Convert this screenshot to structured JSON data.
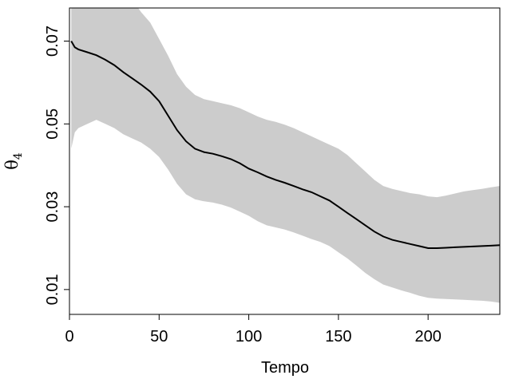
{
  "chart_data": {
    "type": "line",
    "title": "",
    "xlabel": "Tempo",
    "ylabel": "θ",
    "ylabel_subscript": "4",
    "xlim": [
      0,
      240
    ],
    "ylim": [
      0.004,
      0.078
    ],
    "xticks": [
      0,
      50,
      100,
      150,
      200
    ],
    "xtick_labels": [
      "0",
      "50",
      "100",
      "150",
      "200"
    ],
    "yticks": [
      0.01,
      0.03,
      0.05,
      0.07
    ],
    "ytick_labels": [
      "0.01",
      "0.03",
      "0.05",
      "0.07"
    ],
    "grid": false,
    "colors": {
      "line": "#000000",
      "band": "#cccccc",
      "frame": "#000000"
    },
    "series": [
      {
        "kind": "line",
        "x": [
          1,
          3,
          5,
          10,
          15,
          20,
          25,
          30,
          35,
          40,
          45,
          50,
          55,
          60,
          65,
          70,
          75,
          80,
          85,
          90,
          95,
          100,
          105,
          110,
          115,
          120,
          125,
          130,
          135,
          140,
          145,
          150,
          155,
          160,
          165,
          170,
          175,
          180,
          185,
          190,
          195,
          200,
          205,
          210,
          215,
          220,
          225,
          230,
          235,
          240
        ],
        "y": [
          0.07,
          0.0685,
          0.068,
          0.0673,
          0.0666,
          0.0655,
          0.0642,
          0.0625,
          0.061,
          0.0595,
          0.0578,
          0.0555,
          0.052,
          0.0485,
          0.0458,
          0.044,
          0.0432,
          0.0428,
          0.0422,
          0.0415,
          0.0405,
          0.0392,
          0.0383,
          0.0373,
          0.0365,
          0.0358,
          0.035,
          0.0342,
          0.0335,
          0.0325,
          0.0315,
          0.03,
          0.0285,
          0.027,
          0.0255,
          0.024,
          0.0228,
          0.022,
          0.0215,
          0.021,
          0.0205,
          0.02,
          0.02,
          0.0201,
          0.0202,
          0.0203,
          0.0204,
          0.0205,
          0.0206,
          0.0207
        ]
      },
      {
        "kind": "band",
        "x": [
          1,
          3,
          5,
          10,
          15,
          20,
          25,
          30,
          35,
          40,
          45,
          50,
          55,
          60,
          65,
          70,
          75,
          80,
          85,
          90,
          95,
          100,
          105,
          110,
          115,
          120,
          125,
          130,
          135,
          140,
          145,
          150,
          155,
          160,
          165,
          170,
          175,
          180,
          185,
          190,
          195,
          200,
          205,
          210,
          215,
          220,
          225,
          230,
          235,
          240
        ],
        "lower": [
          0.044,
          0.048,
          0.049,
          0.05,
          0.051,
          0.05,
          0.049,
          0.0475,
          0.0465,
          0.0455,
          0.044,
          0.042,
          0.039,
          0.0355,
          0.033,
          0.0318,
          0.0313,
          0.031,
          0.0305,
          0.0298,
          0.0288,
          0.0278,
          0.0265,
          0.0255,
          0.025,
          0.0245,
          0.0238,
          0.023,
          0.0222,
          0.0215,
          0.0205,
          0.019,
          0.0175,
          0.0158,
          0.014,
          0.0125,
          0.0112,
          0.0105,
          0.0098,
          0.0092,
          0.0085,
          0.008,
          0.0078,
          0.0077,
          0.0076,
          0.0075,
          0.0074,
          0.0073,
          0.0071,
          0.0068
        ],
        "upper": [
          0.085,
          0.088,
          0.09,
          0.092,
          0.092,
          0.09,
          0.087,
          0.083,
          0.08,
          0.077,
          0.0745,
          0.0705,
          0.0665,
          0.062,
          0.059,
          0.057,
          0.056,
          0.0555,
          0.055,
          0.0545,
          0.0538,
          0.0528,
          0.0518,
          0.051,
          0.0505,
          0.0498,
          0.049,
          0.048,
          0.047,
          0.046,
          0.045,
          0.044,
          0.0425,
          0.0405,
          0.0385,
          0.0365,
          0.035,
          0.0343,
          0.0338,
          0.0333,
          0.033,
          0.0325,
          0.0323,
          0.0327,
          0.0332,
          0.0337,
          0.034,
          0.0343,
          0.0347,
          0.035
        ]
      }
    ]
  }
}
